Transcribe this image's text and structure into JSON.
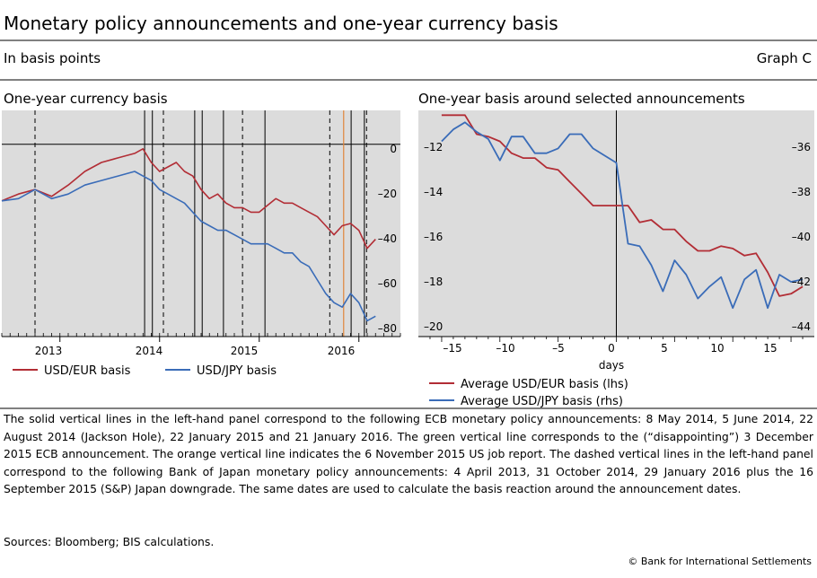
{
  "header": {
    "title": "Monetary policy announcements and one-year currency basis",
    "subtitle": "In basis points",
    "graph_label": "Graph C"
  },
  "left_panel": {
    "title": "One-year currency basis",
    "x_ticks": [
      "2013",
      "2014",
      "2015",
      "2016"
    ],
    "y_ticks": [
      "0",
      "–20",
      "–40",
      "–60",
      "–80"
    ],
    "legend": [
      "USD/EUR basis",
      "USD/JPY basis"
    ]
  },
  "right_panel": {
    "title": "One-year basis around selected announcements",
    "x_ticks": [
      "–15",
      "–10",
      "–5",
      "0",
      "5",
      "10",
      "15"
    ],
    "x_label": "days",
    "y_left_ticks": [
      "–12",
      "–14",
      "–16",
      "–18",
      "–20"
    ],
    "y_right_ticks": [
      "–36",
      "–38",
      "–40",
      "–42",
      "–44"
    ],
    "legend": [
      "Average USD/EUR basis (lhs)",
      "Average USD/JPY basis (rhs)"
    ]
  },
  "footnote": "The solid vertical lines in the left-hand panel correspond to the following ECB monetary policy announcements: 8 May 2014, 5 June 2014, 22 August 2014 (Jackson Hole), 22 January 2015 and 21 January 2016. The green vertical line corresponds to the (“disappointing”) 3 December 2015 ECB announcement. The orange vertical line indicates the 6 November 2015 US job report. The dashed vertical lines in the left-hand panel correspond to the following Bank of Japan monetary policy announcements: 4 April 2013, 31 October 2014, 29 January 2016 plus the 16 September 2015 (S&P) Japan downgrade. The same dates are used to calculate the basis reaction around the announcement dates.",
  "sources": "Sources: Bloomberg; BIS calculations.",
  "copyright": "© Bank for International Settlements",
  "colors": {
    "eur": "#b22d35",
    "jpy": "#3a6cb8",
    "orange": "#e0863a",
    "green": "#3f9a3f",
    "panel_bg": "#dcdcdc"
  },
  "chart_data": [
    {
      "type": "line",
      "title": "One-year currency basis",
      "x_range": [
        "2012-06",
        "2016-06"
      ],
      "ylim": [
        -85,
        15
      ],
      "grid": false,
      "legend_position": "bottom",
      "vlines": {
        "solid": [
          "2013-11-07",
          "2013-12-05",
          "2014-05-08",
          "2014-06-05",
          "2014-08-22",
          "2015-01-22",
          "2015-12-03",
          "2016-01-21"
        ],
        "dashed": [
          "2012-10-01",
          "2014-01-15",
          "2014-10-31",
          "2015-09-16",
          "2016-01-29"
        ],
        "orange": [
          "2015-11-06"
        ]
      },
      "series": [
        {
          "name": "USD/EUR basis",
          "x": [
            "2012-06",
            "2012-08",
            "2012-10",
            "2012-12",
            "2013-02",
            "2013-04",
            "2013-06",
            "2013-08",
            "2013-10",
            "2013-11",
            "2013-12",
            "2014-01",
            "2014-02",
            "2014-03",
            "2014-04",
            "2014-05",
            "2014-06",
            "2014-07",
            "2014-08",
            "2014-09",
            "2014-10",
            "2014-11",
            "2014-12",
            "2015-01",
            "2015-02",
            "2015-03",
            "2015-04",
            "2015-05",
            "2015-06",
            "2015-07",
            "2015-08",
            "2015-09",
            "2015-10",
            "2015-11",
            "2015-12",
            "2016-01",
            "2016-02",
            "2016-03"
          ],
          "values": [
            -25,
            -22,
            -20,
            -23,
            -18,
            -12,
            -8,
            -6,
            -4,
            -2,
            -8,
            -12,
            -10,
            -8,
            -12,
            -14,
            -20,
            -24,
            -22,
            -26,
            -28,
            -28,
            -30,
            -30,
            -27,
            -24,
            -26,
            -26,
            -28,
            -30,
            -32,
            -36,
            -40,
            -36,
            -35,
            -38,
            -46,
            -42
          ]
        },
        {
          "name": "USD/JPY basis",
          "x": [
            "2012-06",
            "2012-08",
            "2012-10",
            "2012-12",
            "2013-02",
            "2013-04",
            "2013-06",
            "2013-08",
            "2013-10",
            "2013-11",
            "2013-12",
            "2014-01",
            "2014-02",
            "2014-03",
            "2014-04",
            "2014-05",
            "2014-06",
            "2014-07",
            "2014-08",
            "2014-09",
            "2014-10",
            "2014-11",
            "2014-12",
            "2015-01",
            "2015-02",
            "2015-03",
            "2015-04",
            "2015-05",
            "2015-06",
            "2015-07",
            "2015-08",
            "2015-09",
            "2015-10",
            "2015-11",
            "2015-12",
            "2016-01",
            "2016-02",
            "2016-03"
          ],
          "values": [
            -25,
            -24,
            -20,
            -24,
            -22,
            -18,
            -16,
            -14,
            -12,
            -14,
            -16,
            -20,
            -22,
            -24,
            -26,
            -30,
            -34,
            -36,
            -38,
            -38,
            -40,
            -42,
            -44,
            -44,
            -44,
            -46,
            -48,
            -48,
            -52,
            -54,
            -60,
            -66,
            -70,
            -72,
            -66,
            -70,
            -78,
            -76
          ]
        }
      ]
    },
    {
      "type": "line",
      "title": "One-year basis around selected announcements",
      "xlabel": "days",
      "xlim": [
        -17,
        17
      ],
      "ylim_left": [
        -20.5,
        -11
      ],
      "ylim_right": [
        -44.5,
        -35
      ],
      "grid": false,
      "legend_position": "bottom",
      "x": [
        -15,
        -14,
        -13,
        -12,
        -11,
        -10,
        -9,
        -8,
        -7,
        -6,
        -5,
        -4,
        -3,
        -2,
        -1,
        0,
        1,
        2,
        3,
        4,
        5,
        6,
        7,
        8,
        9,
        10,
        11,
        12,
        13,
        14,
        15,
        16
      ],
      "series": [
        {
          "name": "Average USD/EUR basis (lhs)",
          "axis": "left",
          "values": [
            -11.2,
            -11.2,
            -11.2,
            -12.0,
            -12.1,
            -12.3,
            -12.8,
            -13.0,
            -13.0,
            -13.4,
            -13.5,
            -14.0,
            -14.5,
            -15.0,
            -15.0,
            -15.0,
            -15.0,
            -15.7,
            -15.6,
            -16.0,
            -16.0,
            -16.5,
            -16.9,
            -16.9,
            -16.7,
            -16.8,
            -17.1,
            -17.0,
            -17.8,
            -18.8,
            -18.7,
            -18.4
          ]
        },
        {
          "name": "Average USD/JPY basis (rhs)",
          "axis": "right",
          "values": [
            -36.3,
            -35.8,
            -35.5,
            -35.9,
            -36.2,
            -37.1,
            -36.1,
            -36.1,
            -36.8,
            -36.8,
            -36.6,
            -36.0,
            -36.0,
            -36.6,
            -36.9,
            -37.2,
            -40.6,
            -40.7,
            -41.5,
            -42.6,
            -41.3,
            -41.9,
            -42.9,
            -42.4,
            -42.0,
            -43.3,
            -42.1,
            -41.7,
            -43.3,
            -41.9,
            -42.2,
            -42.1
          ]
        }
      ]
    }
  ]
}
